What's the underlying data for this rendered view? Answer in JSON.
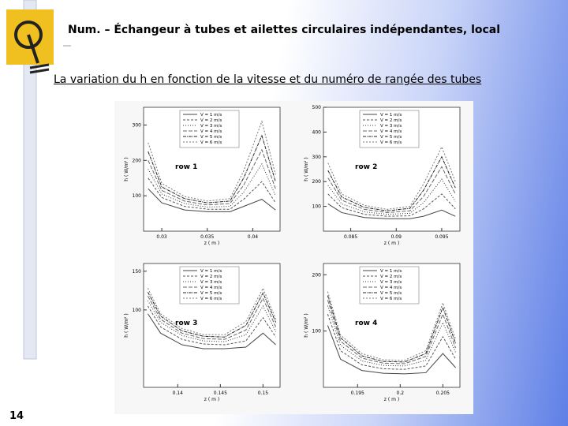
{
  "slide": {
    "title": "Num. – Échangeur à tubes et ailettes circulaires indépendantes, local",
    "subtitle": "La variation du h en fonction de la vitesse et du numéro de rangée des tubes",
    "page_number": "14"
  },
  "figure": {
    "type": "line",
    "xlabel": "z ( m )",
    "ylabel": "h ( W/m² )",
    "series": [
      {
        "name": "V = 1 m/s",
        "color": "#444444"
      },
      {
        "name": "V = 2 m/s",
        "color": "#555555"
      },
      {
        "name": "V = 3 m/s",
        "color": "#333333"
      },
      {
        "name": "V = 4 m/s",
        "color": "#666666"
      },
      {
        "name": "V = 5 m/s",
        "color": "#222222"
      },
      {
        "name": "V = 6 m/s",
        "color": "#777777"
      }
    ],
    "panels": [
      {
        "label": "row 1",
        "x": [
          0.0285,
          0.03,
          0.0325,
          0.035,
          0.0375,
          0.039,
          0.041,
          0.0425
        ],
        "xlim": [
          0.028,
          0.043
        ],
        "xticks": [
          0.03,
          0.035,
          0.04
        ],
        "ylim": [
          0,
          350
        ],
        "yticks": [
          100,
          200,
          300
        ],
        "values": [
          [
            120,
            80,
            60,
            55,
            55,
            70,
            90,
            60
          ],
          [
            150,
            95,
            70,
            62,
            62,
            90,
            140,
            80
          ],
          [
            175,
            105,
            78,
            68,
            70,
            110,
            190,
            100
          ],
          [
            200,
            115,
            85,
            74,
            78,
            130,
            230,
            120
          ],
          [
            225,
            125,
            92,
            80,
            85,
            150,
            270,
            140
          ],
          [
            250,
            135,
            98,
            85,
            92,
            170,
            310,
            160
          ]
        ]
      },
      {
        "label": "row 2",
        "x": [
          0.0825,
          0.084,
          0.0865,
          0.089,
          0.0915,
          0.093,
          0.095,
          0.0965
        ],
        "xlim": [
          0.082,
          0.097
        ],
        "xticks": [
          0.085,
          0.09,
          0.095
        ],
        "ylim": [
          0,
          500
        ],
        "yticks": [
          100,
          200,
          300,
          400,
          500
        ],
        "values": [
          [
            110,
            75,
            55,
            50,
            50,
            60,
            85,
            60
          ],
          [
            150,
            95,
            68,
            60,
            62,
            90,
            150,
            90
          ],
          [
            185,
            110,
            78,
            68,
            72,
            115,
            210,
            120
          ],
          [
            215,
            125,
            88,
            75,
            82,
            140,
            260,
            150
          ],
          [
            245,
            138,
            96,
            82,
            92,
            165,
            300,
            175
          ],
          [
            275,
            150,
            104,
            88,
            100,
            190,
            340,
            200
          ]
        ]
      },
      {
        "label": "row 3",
        "x": [
          0.1365,
          0.138,
          0.1405,
          0.143,
          0.1455,
          0.148,
          0.15,
          0.1515
        ],
        "xlim": [
          0.136,
          0.152
        ],
        "xticks": [
          0.14,
          0.145,
          0.15
        ],
        "ylim": [
          0,
          160
        ],
        "yticks": [
          100,
          150
        ],
        "values": [
          [
            95,
            70,
            55,
            50,
            50,
            52,
            70,
            55
          ],
          [
            105,
            78,
            62,
            56,
            55,
            60,
            90,
            65
          ],
          [
            112,
            84,
            67,
            60,
            59,
            68,
            105,
            72
          ],
          [
            118,
            88,
            70,
            63,
            62,
            74,
            115,
            78
          ],
          [
            123,
            92,
            73,
            66,
            65,
            80,
            122,
            84
          ],
          [
            128,
            95,
            76,
            68,
            68,
            85,
            128,
            88
          ]
        ]
      },
      {
        "label": "row 4",
        "x": [
          0.1915,
          0.193,
          0.1955,
          0.198,
          0.2005,
          0.203,
          0.205,
          0.2065
        ],
        "xlim": [
          0.191,
          0.207
        ],
        "xticks": [
          0.195,
          0.2,
          0.205
        ],
        "ylim": [
          0,
          220
        ],
        "yticks": [
          100,
          200
        ],
        "values": [
          [
            110,
            50,
            30,
            25,
            24,
            26,
            60,
            35
          ],
          [
            130,
            65,
            40,
            33,
            32,
            38,
            90,
            50
          ],
          [
            145,
            75,
            47,
            39,
            38,
            48,
            115,
            62
          ],
          [
            155,
            82,
            52,
            43,
            42,
            55,
            130,
            70
          ],
          [
            163,
            88,
            56,
            46,
            45,
            60,
            142,
            78
          ],
          [
            170,
            93,
            60,
            49,
            48,
            65,
            150,
            85
          ]
        ]
      }
    ]
  }
}
